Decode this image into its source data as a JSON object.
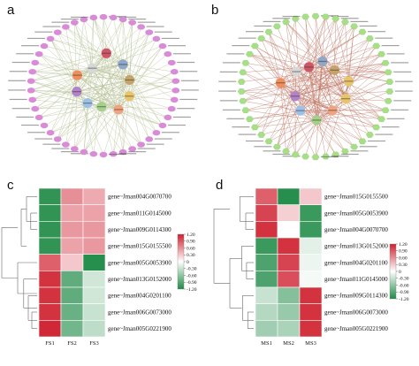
{
  "panels": [
    {
      "letter": "a"
    },
    {
      "letter": "b"
    },
    {
      "letter": "c"
    },
    {
      "letter": "d"
    }
  ],
  "colors": {
    "low": "#1e8a46",
    "mid": "#ffffff",
    "high": "#cf1f2e",
    "network_a_nodes": "#d98bd8",
    "network_a_edges": "#b9c39a",
    "network_b_nodes": "#a6df86",
    "network_b_edges": "#c27b6a",
    "hub_colors": [
      "#e8c46b",
      "#f1a37f",
      "#a4d08a",
      "#9ec0e6",
      "#b383c9",
      "#f08d5d",
      "#d7d7d7",
      "#cf5666",
      "#8fa7c8",
      "#c6a36a"
    ]
  },
  "networks": [
    {
      "id": "a",
      "ring_count": 46,
      "ring_shape": "ellipse",
      "hub_count": 10
    },
    {
      "id": "b",
      "ring_count": 46,
      "ring_shape": "hexagon",
      "hub_count": 11
    }
  ],
  "chart_data": [
    {
      "type": "heatmap",
      "title": "",
      "columns": [
        "FS1",
        "FS2",
        "FS3"
      ],
      "rows": [
        "gene~Jman004G0070700",
        "gene~Jman011G0145000",
        "gene~Jman009G0114300",
        "gene~Jman015G0155500",
        "gene~Jman005G0053900",
        "gene~Jman013G0152000",
        "gene~Jman004G0201100",
        "gene~Jman006G0073000",
        "gene~Jman005G0221900"
      ],
      "values": [
        [
          -1.1,
          0.6,
          0.45
        ],
        [
          -1.1,
          0.5,
          0.5
        ],
        [
          -1.1,
          0.55,
          0.55
        ],
        [
          -1.1,
          0.5,
          0.55
        ],
        [
          0.85,
          0.3,
          -1.15
        ],
        [
          1.1,
          -0.85,
          -0.25
        ],
        [
          1.1,
          -0.85,
          -0.25
        ],
        [
          1.1,
          -0.8,
          -0.3
        ],
        [
          1.15,
          -0.75,
          -0.35
        ]
      ],
      "scale": {
        "min": -1.2,
        "max": 1.2,
        "ticks": [
          "1.20",
          "0.90",
          "0.60",
          "0.30",
          "0",
          "-0.30",
          "-0.60",
          "-0.90",
          "-1.20"
        ]
      }
    },
    {
      "type": "heatmap",
      "title": "",
      "columns": [
        "MS1",
        "MS2",
        "MS3"
      ],
      "rows": [
        "gene~Jman015G0155500",
        "gene~Jman005G0053900",
        "gene~Jman004G0070700",
        "gene~Jman013G0152000",
        "gene~Jman004G0201100",
        "gene~Jman011G0145000",
        "gene~Jman009G0114300",
        "gene~Jman006G0073000",
        "gene~Jman005G0221900"
      ],
      "values": [
        [
          0.85,
          -1.15,
          0.3
        ],
        [
          1.0,
          0.25,
          -1.05
        ],
        [
          1.1,
          0.0,
          -1.05
        ],
        [
          -1.05,
          1.1,
          -0.15
        ],
        [
          -0.95,
          1.0,
          -0.1
        ],
        [
          -0.95,
          0.95,
          -0.05
        ],
        [
          -0.3,
          -0.65,
          1.1
        ],
        [
          -0.4,
          -0.55,
          1.1
        ],
        [
          -0.5,
          -0.45,
          1.1
        ]
      ],
      "scale": {
        "min": -1.2,
        "max": 1.2,
        "ticks": [
          "1.20",
          "0.90",
          "0.60",
          "0.30",
          "0",
          "-0.30",
          "-0.60",
          "-0.90",
          "-1.20"
        ]
      }
    }
  ]
}
